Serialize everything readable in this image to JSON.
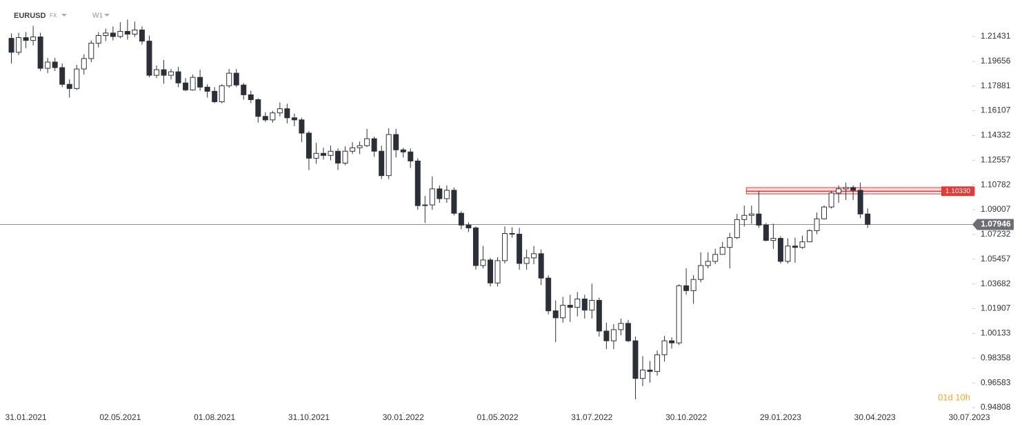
{
  "chart_data": {
    "type": "candlestick",
    "title": "EURUSD",
    "market": "FX",
    "interval": "W1",
    "x": [
      "2021-01-17",
      "2021-01-24",
      "2021-01-31",
      "2021-02-07",
      "2021-02-14",
      "2021-02-21",
      "2021-02-28",
      "2021-03-07",
      "2021-03-14",
      "2021-03-21",
      "2021-03-28",
      "2021-04-04",
      "2021-04-11",
      "2021-04-18",
      "2021-04-25",
      "2021-05-02",
      "2021-05-09",
      "2021-05-16",
      "2021-05-23",
      "2021-05-30",
      "2021-06-06",
      "2021-06-13",
      "2021-06-20",
      "2021-06-27",
      "2021-07-04",
      "2021-07-11",
      "2021-07-18",
      "2021-07-25",
      "2021-08-01",
      "2021-08-08",
      "2021-08-15",
      "2021-08-22",
      "2021-08-29",
      "2021-09-05",
      "2021-09-12",
      "2021-09-19",
      "2021-09-26",
      "2021-10-03",
      "2021-10-10",
      "2021-10-17",
      "2021-10-24",
      "2021-10-31",
      "2021-11-07",
      "2021-11-14",
      "2021-11-21",
      "2021-11-28",
      "2021-12-05",
      "2021-12-12",
      "2021-12-19",
      "2021-12-26",
      "2022-01-02",
      "2022-01-09",
      "2022-01-16",
      "2022-01-23",
      "2022-01-30",
      "2022-02-06",
      "2022-02-13",
      "2022-02-20",
      "2022-02-27",
      "2022-03-06",
      "2022-03-13",
      "2022-03-20",
      "2022-03-27",
      "2022-04-03",
      "2022-04-10",
      "2022-04-17",
      "2022-04-24",
      "2022-05-01",
      "2022-05-08",
      "2022-05-15",
      "2022-05-22",
      "2022-05-29",
      "2022-06-05",
      "2022-06-12",
      "2022-06-19",
      "2022-06-26",
      "2022-07-03",
      "2022-07-10",
      "2022-07-17",
      "2022-07-24",
      "2022-07-31",
      "2022-08-07",
      "2022-08-14",
      "2022-08-21",
      "2022-08-28",
      "2022-09-04",
      "2022-09-11",
      "2022-09-18",
      "2022-09-25",
      "2022-10-02",
      "2022-10-09",
      "2022-10-16",
      "2022-10-23",
      "2022-10-30",
      "2022-11-06",
      "2022-11-13",
      "2022-11-20",
      "2022-11-27",
      "2022-12-04",
      "2022-12-11",
      "2022-12-18",
      "2022-12-25",
      "2023-01-01",
      "2023-01-08",
      "2023-01-15",
      "2023-01-22",
      "2023-01-29",
      "2023-02-05",
      "2023-02-12",
      "2023-02-19",
      "2023-02-26",
      "2023-03-05",
      "2023-03-12",
      "2023-03-19",
      "2023-03-26",
      "2023-04-02",
      "2023-04-09",
      "2023-04-16",
      "2023-04-23"
    ],
    "open": [
      1.213,
      1.203,
      1.2135,
      1.2115,
      1.214,
      1.1915,
      1.196,
      1.192,
      1.18,
      1.177,
      1.191,
      1.1985,
      1.2095,
      1.215,
      1.2168,
      1.2143,
      1.218,
      1.216,
      1.219,
      1.211,
      1.1865,
      1.1905,
      1.1865,
      1.189,
      1.181,
      1.176,
      1.185,
      1.178,
      1.175,
      1.1675,
      1.179,
      1.188,
      1.1795,
      1.1725,
      1.169,
      1.157,
      1.1545,
      1.1595,
      1.1625,
      1.156,
      1.1545,
      1.145,
      1.127,
      1.1305,
      1.129,
      1.132,
      1.1235,
      1.132,
      1.1345,
      1.136,
      1.141,
      1.132,
      1.1145,
      1.144,
      1.133,
      1.1315,
      1.125,
      1.093,
      1.0935,
      1.105,
      1.098,
      1.104,
      1.0875,
      1.079,
      1.077,
      1.05,
      1.054,
      1.0375,
      1.0535,
      1.073,
      1.0725,
      1.0515,
      1.0555,
      1.0585,
      1.041,
      1.0175,
      1.0125,
      1.0215,
      1.02,
      1.026,
      1.018,
      1.025,
      1.003,
      0.996,
      1.004,
      1.0085,
      0.996,
      0.969,
      0.975,
      0.974,
      0.986,
      0.996,
      0.9945,
      1.0355,
      1.032,
      1.04,
      1.05,
      1.053,
      1.058,
      1.063,
      1.07,
      1.083,
      1.086,
      1.087,
      1.079,
      1.068,
      1.0695,
      1.053,
      1.064,
      1.063,
      1.067,
      1.075,
      1.0835,
      1.092,
      1.102,
      1.105,
      1.106,
      1.104,
      1.087
    ],
    "high": [
      1.2165,
      1.217,
      1.2175,
      1.222,
      1.217,
      1.199,
      1.199,
      1.195,
      1.1835,
      1.194,
      1.2015,
      1.2115,
      1.2175,
      1.22,
      1.2215,
      1.2245,
      1.2265,
      1.225,
      1.2215,
      1.215,
      1.1935,
      1.1975,
      1.191,
      1.1925,
      1.1845,
      1.187,
      1.1905,
      1.18,
      1.178,
      1.18,
      1.191,
      1.191,
      1.181,
      1.1755,
      1.17,
      1.16,
      1.161,
      1.167,
      1.166,
      1.159,
      1.156,
      1.1465,
      1.138,
      1.1345,
      1.136,
      1.134,
      1.1355,
      1.1385,
      1.139,
      1.148,
      1.1425,
      1.136,
      1.1485,
      1.148,
      1.1345,
      1.134,
      1.127,
      1.1,
      1.114,
      1.1075,
      1.1075,
      1.106,
      1.089,
      1.081,
      1.078,
      1.064,
      1.0555,
      1.056,
      1.078,
      1.0775,
      1.077,
      1.0615,
      1.064,
      1.0615,
      1.043,
      1.025,
      1.0275,
      1.029,
      1.031,
      1.029,
      1.037,
      1.027,
      1.009,
      1.008,
      1.012,
      1.011,
      0.999,
      0.985,
      0.9815,
      0.989,
      0.9995,
      0.9985,
      1.0365,
      1.048,
      1.043,
      1.0595,
      1.0595,
      1.062,
      1.067,
      1.0735,
      1.087,
      1.093,
      1.093,
      1.1035,
      1.0805,
      1.08,
      1.071,
      1.0695,
      1.07,
      1.0715,
      1.076,
      1.088,
      1.093,
      1.1035,
      1.1075,
      1.1095,
      1.1075,
      1.1095,
      1.091
    ],
    "low": [
      1.195,
      1.201,
      1.206,
      1.208,
      1.1895,
      1.188,
      1.1895,
      1.178,
      1.1705,
      1.176,
      1.187,
      1.196,
      1.2065,
      1.211,
      1.2115,
      1.213,
      1.212,
      1.214,
      1.2085,
      1.185,
      1.1845,
      1.1805,
      1.1835,
      1.178,
      1.175,
      1.1755,
      1.1755,
      1.1705,
      1.1665,
      1.1665,
      1.1775,
      1.178,
      1.169,
      1.1665,
      1.1525,
      1.153,
      1.1525,
      1.157,
      1.152,
      1.15,
      1.1385,
      1.1185,
      1.123,
      1.126,
      1.1255,
      1.1185,
      1.122,
      1.13,
      1.13,
      1.135,
      1.128,
      1.112,
      1.112,
      1.1275,
      1.1275,
      1.12,
      1.09,
      1.0805,
      1.09,
      1.095,
      1.095,
      1.086,
      1.076,
      1.074,
      1.047,
      1.048,
      1.035,
      1.035,
      1.0515,
      1.07,
      1.047,
      1.047,
      1.051,
      1.036,
      1.015,
      0.995,
      1.009,
      1.0095,
      1.0135,
      1.012,
      1.012,
      0.999,
      0.99,
      0.99,
      1.0,
      0.995,
      0.954,
      0.9635,
      0.966,
      0.971,
      0.981,
      0.9905,
      0.993,
      1.029,
      1.0225,
      1.038,
      1.048,
      1.051,
      1.058,
      1.048,
      1.069,
      1.078,
      1.08,
      1.077,
      1.0675,
      1.062,
      1.0515,
      1.0515,
      1.052,
      1.062,
      1.0675,
      1.0725,
      1.083,
      1.091,
      1.095,
      1.097,
      1.097,
      1.084,
      1.077
    ],
    "close": [
      1.203,
      1.2135,
      1.2115,
      1.214,
      1.1915,
      1.196,
      1.192,
      1.18,
      1.177,
      1.191,
      1.1985,
      1.2095,
      1.215,
      1.2168,
      1.2143,
      1.218,
      1.216,
      1.219,
      1.211,
      1.1865,
      1.1905,
      1.1865,
      1.189,
      1.181,
      1.176,
      1.185,
      1.178,
      1.175,
      1.1675,
      1.179,
      1.188,
      1.1795,
      1.1725,
      1.169,
      1.157,
      1.1545,
      1.1595,
      1.1625,
      1.156,
      1.1545,
      1.145,
      1.127,
      1.1305,
      1.129,
      1.132,
      1.1235,
      1.132,
      1.1345,
      1.136,
      1.141,
      1.132,
      1.1145,
      1.144,
      1.133,
      1.1315,
      1.125,
      1.093,
      1.0935,
      1.105,
      1.098,
      1.104,
      1.0875,
      1.079,
      1.077,
      1.05,
      1.054,
      1.0375,
      1.0535,
      1.073,
      1.0725,
      1.0515,
      1.0555,
      1.0585,
      1.041,
      1.0175,
      1.0125,
      1.0215,
      1.02,
      1.026,
      1.018,
      1.025,
      1.003,
      0.996,
      1.004,
      1.0085,
      0.996,
      0.969,
      0.975,
      0.974,
      0.986,
      0.996,
      0.9945,
      1.0355,
      1.032,
      1.04,
      1.05,
      1.053,
      1.058,
      1.063,
      1.07,
      1.083,
      1.086,
      1.087,
      1.079,
      1.068,
      1.0695,
      1.053,
      1.064,
      1.063,
      1.067,
      1.075,
      1.0835,
      1.092,
      1.102,
      1.105,
      1.106,
      1.104,
      1.087,
      1.0795
    ],
    "up_color": "#ffffff",
    "down_color": "#2b3038",
    "xlim": [
      "2021-01-06",
      "2023-08-02"
    ],
    "xticks": [
      {
        "value": "2021-01-31",
        "label": "31.01.2021"
      },
      {
        "value": "2021-05-02",
        "label": "02.05.2021"
      },
      {
        "value": "2021-08-01",
        "label": "01.08.2021"
      },
      {
        "value": "2021-10-31",
        "label": "31.10.2021"
      },
      {
        "value": "2022-01-30",
        "label": "30.01.2022"
      },
      {
        "value": "2022-05-01",
        "label": "01.05.2022"
      },
      {
        "value": "2022-07-31",
        "label": "31.07.2022"
      },
      {
        "value": "2022-10-30",
        "label": "30.10.2022"
      },
      {
        "value": "2023-01-29",
        "label": "29.01.2023"
      },
      {
        "value": "2023-04-30",
        "label": "30.04.2023"
      },
      {
        "value": "2023-07-30",
        "label": "30.07.2023"
      }
    ],
    "ylim": [
      0.9451,
      1.2405
    ],
    "yticks": [
      1.21431,
      1.19656,
      1.17881,
      1.16107,
      1.14332,
      1.12557,
      1.10782,
      1.09007,
      1.07232,
      1.05457,
      1.03682,
      1.01907,
      1.00133,
      0.98358,
      0.96583,
      0.94808
    ],
    "current_price": 1.07946,
    "resistance": {
      "value": 1.1033,
      "label": "1.10330"
    },
    "zone": {
      "start": "2022-12-27",
      "low": 1.1014,
      "high": 1.1059,
      "color": "#e53935"
    },
    "timer": "01d 10h"
  }
}
